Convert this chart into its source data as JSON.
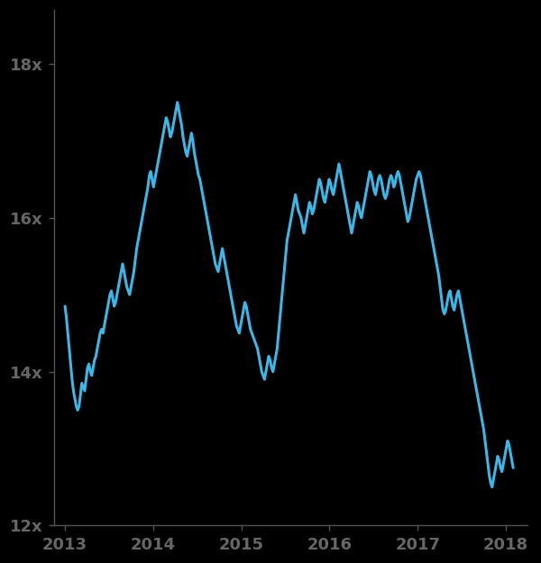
{
  "line_color": "#3BB8E8",
  "background_color": "#000000",
  "tick_label_color": "#666666",
  "spine_color": "#555555",
  "line_width": 2.2,
  "ylim": [
    12.0,
    18.7
  ],
  "yticks": [
    12,
    14,
    16,
    18
  ],
  "ytick_labels": [
    "12x",
    "14x",
    "16x",
    "18x"
  ],
  "xtick_labels": [
    "2013",
    "2014",
    "2015",
    "2016",
    "2017",
    "2018"
  ],
  "xlim_left": 2012.88,
  "xlim_right": 2018.25,
  "x_start": 2013.0,
  "x_end": 2018.083,
  "values": [
    14.85,
    14.7,
    14.5,
    14.3,
    14.1,
    13.9,
    13.75,
    13.65,
    13.55,
    13.5,
    13.55,
    13.7,
    13.85,
    13.8,
    13.75,
    13.9,
    14.05,
    14.1,
    14.0,
    13.95,
    14.05,
    14.15,
    14.2,
    14.3,
    14.4,
    14.5,
    14.55,
    14.5,
    14.6,
    14.7,
    14.8,
    14.9,
    15.0,
    15.05,
    14.95,
    14.85,
    14.9,
    15.0,
    15.1,
    15.2,
    15.3,
    15.4,
    15.3,
    15.2,
    15.1,
    15.05,
    15.0,
    15.1,
    15.2,
    15.3,
    15.45,
    15.6,
    15.7,
    15.8,
    15.9,
    16.0,
    16.1,
    16.2,
    16.3,
    16.4,
    16.55,
    16.6,
    16.5,
    16.4,
    16.5,
    16.6,
    16.7,
    16.8,
    16.9,
    17.0,
    17.1,
    17.2,
    17.3,
    17.25,
    17.15,
    17.05,
    17.1,
    17.2,
    17.3,
    17.4,
    17.5,
    17.4,
    17.3,
    17.2,
    17.05,
    16.95,
    16.85,
    16.8,
    16.9,
    17.0,
    17.1,
    17.0,
    16.85,
    16.75,
    16.65,
    16.55,
    16.5,
    16.4,
    16.3,
    16.2,
    16.1,
    16.0,
    15.9,
    15.8,
    15.7,
    15.6,
    15.5,
    15.4,
    15.35,
    15.3,
    15.4,
    15.5,
    15.6,
    15.5,
    15.4,
    15.3,
    15.2,
    15.1,
    15.0,
    14.9,
    14.8,
    14.7,
    14.6,
    14.55,
    14.5,
    14.6,
    14.7,
    14.8,
    14.9,
    14.85,
    14.75,
    14.65,
    14.55,
    14.5,
    14.45,
    14.4,
    14.35,
    14.3,
    14.2,
    14.1,
    14.0,
    13.95,
    13.9,
    14.0,
    14.1,
    14.2,
    14.15,
    14.05,
    14.0,
    14.1,
    14.2,
    14.3,
    14.5,
    14.7,
    14.9,
    15.1,
    15.3,
    15.5,
    15.7,
    15.8,
    15.9,
    16.0,
    16.1,
    16.2,
    16.3,
    16.2,
    16.1,
    16.05,
    16.0,
    15.9,
    15.8,
    15.9,
    16.0,
    16.1,
    16.2,
    16.15,
    16.05,
    16.1,
    16.2,
    16.3,
    16.4,
    16.5,
    16.45,
    16.35,
    16.25,
    16.2,
    16.3,
    16.4,
    16.5,
    16.45,
    16.35,
    16.3,
    16.4,
    16.5,
    16.6,
    16.7,
    16.6,
    16.5,
    16.4,
    16.3,
    16.2,
    16.1,
    16.0,
    15.9,
    15.8,
    15.9,
    16.0,
    16.1,
    16.2,
    16.15,
    16.05,
    16.0,
    16.1,
    16.2,
    16.3,
    16.4,
    16.5,
    16.6,
    16.55,
    16.45,
    16.35,
    16.3,
    16.4,
    16.5,
    16.55,
    16.5,
    16.4,
    16.3,
    16.25,
    16.3,
    16.4,
    16.5,
    16.55,
    16.5,
    16.4,
    16.45,
    16.55,
    16.6,
    16.55,
    16.45,
    16.35,
    16.25,
    16.15,
    16.05,
    15.95,
    16.0,
    16.1,
    16.2,
    16.3,
    16.4,
    16.5,
    16.55,
    16.6,
    16.55,
    16.45,
    16.35,
    16.25,
    16.15,
    16.05,
    15.95,
    15.85,
    15.75,
    15.65,
    15.55,
    15.45,
    15.35,
    15.25,
    15.1,
    14.95,
    14.8,
    14.75,
    14.8,
    14.9,
    15.0,
    15.05,
    14.95,
    14.85,
    14.8,
    14.9,
    15.0,
    15.05,
    14.95,
    14.85,
    14.75,
    14.65,
    14.55,
    14.45,
    14.35,
    14.25,
    14.15,
    14.05,
    13.95,
    13.85,
    13.75,
    13.65,
    13.55,
    13.45,
    13.35,
    13.25,
    13.1,
    12.95,
    12.8,
    12.65,
    12.55,
    12.5,
    12.6,
    12.7,
    12.8,
    12.9,
    12.85,
    12.75,
    12.7,
    12.8,
    12.9,
    13.0,
    13.1,
    13.05,
    12.95,
    12.85,
    12.75
  ]
}
